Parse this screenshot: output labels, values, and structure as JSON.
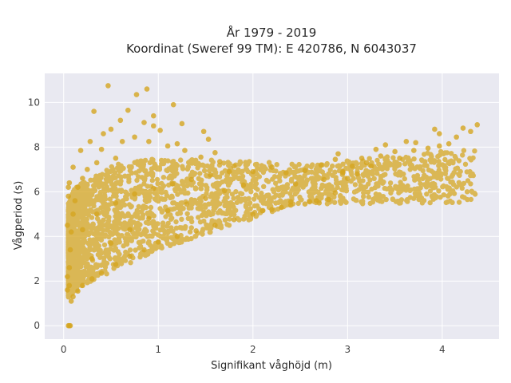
{
  "chart_data": {
    "type": "scatter",
    "title_lines": [
      "År 1979 - 2019",
      "Koordinat (Sweref 99 TM): E 420786, N 6043037"
    ],
    "xlabel": "Signifikant våghöjd (m)",
    "ylabel": "Vågperiod (s)",
    "xlim": [
      -0.2,
      4.6
    ],
    "ylim": [
      -0.6,
      11.3
    ],
    "xticks": [
      0,
      1,
      2,
      3,
      4
    ],
    "yticks": [
      0,
      2,
      4,
      6,
      8,
      10
    ],
    "grid": true,
    "marker_color": "#D4A520",
    "plot_background": "#E9E9F1",
    "points": [
      [
        0.05,
        0.0
      ],
      [
        0.07,
        0.0
      ],
      [
        0.06,
        0.0
      ],
      [
        0.47,
        10.75
      ],
      [
        0.77,
        10.35
      ],
      [
        0.88,
        10.6
      ],
      [
        1.16,
        9.9
      ],
      [
        0.32,
        9.6
      ],
      [
        0.68,
        9.65
      ],
      [
        0.6,
        9.2
      ],
      [
        0.95,
        9.4
      ],
      [
        0.85,
        9.1
      ],
      [
        0.42,
        8.6
      ],
      [
        0.5,
        8.8
      ],
      [
        0.95,
        8.95
      ],
      [
        1.25,
        9.05
      ],
      [
        1.02,
        8.75
      ],
      [
        1.48,
        8.7
      ],
      [
        1.53,
        8.35
      ],
      [
        1.2,
        8.15
      ],
      [
        1.6,
        7.75
      ],
      [
        0.28,
        8.25
      ],
      [
        0.18,
        7.85
      ],
      [
        0.1,
        7.1
      ],
      [
        0.05,
        6.2
      ],
      [
        0.08,
        1.1
      ],
      [
        0.1,
        1.3
      ],
      [
        0.15,
        1.55
      ],
      [
        0.2,
        1.8
      ],
      [
        0.3,
        2.1
      ],
      [
        0.4,
        2.35
      ],
      [
        0.55,
        2.75
      ],
      [
        0.7,
        3.1
      ],
      [
        0.85,
        3.4
      ],
      [
        1.0,
        3.75
      ],
      [
        1.2,
        4.0
      ],
      [
        1.4,
        4.25
      ],
      [
        1.6,
        4.5
      ],
      [
        1.8,
        4.75
      ],
      [
        2.0,
        5.0
      ],
      [
        2.2,
        5.2
      ],
      [
        2.4,
        5.4
      ],
      [
        2.6,
        5.55
      ],
      [
        2.87,
        5.95
      ],
      [
        2.67,
        5.6
      ],
      [
        2.95,
        6.9
      ],
      [
        3.05,
        7.15
      ],
      [
        3.2,
        7.3
      ],
      [
        3.35,
        7.6
      ],
      [
        3.5,
        7.8
      ],
      [
        3.7,
        7.85
      ],
      [
        3.85,
        7.95
      ],
      [
        3.97,
        8.05
      ],
      [
        4.07,
        8.15
      ],
      [
        4.15,
        8.45
      ],
      [
        4.3,
        8.7
      ],
      [
        4.37,
        9.0
      ],
      [
        4.22,
        8.85
      ],
      [
        3.97,
        8.6
      ],
      [
        3.92,
        8.8
      ],
      [
        3.72,
        8.2
      ],
      [
        3.62,
        8.25
      ],
      [
        3.4,
        8.1
      ],
      [
        3.3,
        7.9
      ],
      [
        3.15,
        7.5
      ],
      [
        2.87,
        7.45
      ],
      [
        2.72,
        7.2
      ],
      [
        2.9,
        7.7
      ],
      [
        2.55,
        6.95
      ],
      [
        2.35,
        6.85
      ],
      [
        2.2,
        7.1
      ],
      [
        2.0,
        6.9
      ],
      [
        1.8,
        7.15
      ],
      [
        1.65,
        7.35
      ],
      [
        1.45,
        7.55
      ],
      [
        1.28,
        7.85
      ],
      [
        1.1,
        8.05
      ],
      [
        0.9,
        8.25
      ],
      [
        0.75,
        8.45
      ],
      [
        0.62,
        8.25
      ],
      [
        0.4,
        7.9
      ],
      [
        0.55,
        7.5
      ],
      [
        0.35,
        7.3
      ],
      [
        0.25,
        7.0
      ],
      [
        0.2,
        6.6
      ],
      [
        0.15,
        6.2
      ],
      [
        0.12,
        5.6
      ],
      [
        0.1,
        5.0
      ],
      [
        0.08,
        4.2
      ],
      [
        0.07,
        3.4
      ],
      [
        0.06,
        2.6
      ],
      [
        0.06,
        1.8
      ],
      [
        0.04,
        1.6
      ],
      [
        0.04,
        2.2
      ],
      [
        0.04,
        4.5
      ],
      [
        0.05,
        5.8
      ],
      [
        0.06,
        6.4
      ],
      [
        2.4,
        5.55
      ],
      [
        2.55,
        5.45
      ],
      [
        2.7,
        5.5
      ],
      [
        2.8,
        5.65
      ],
      [
        2.3,
        5.3
      ],
      [
        2.1,
        5.15
      ],
      [
        3.0,
        6.6
      ],
      [
        3.1,
        6.8
      ],
      [
        2.75,
        6.55
      ],
      [
        2.45,
        6.35
      ],
      [
        1.9,
        6.3
      ],
      [
        1.7,
        6.05
      ],
      [
        1.5,
        5.7
      ],
      [
        1.3,
        5.45
      ],
      [
        1.1,
        5.15
      ],
      [
        0.9,
        4.8
      ],
      [
        0.7,
        4.3
      ],
      [
        0.5,
        3.7
      ],
      [
        0.3,
        3.0
      ],
      [
        1.75,
        6.9
      ],
      [
        1.55,
        6.75
      ],
      [
        1.35,
        6.55
      ],
      [
        1.15,
        6.35
      ],
      [
        0.95,
        6.15
      ],
      [
        0.75,
        5.9
      ],
      [
        0.55,
        5.5
      ],
      [
        0.35,
        5.0
      ],
      [
        0.2,
        4.3
      ],
      [
        3.55,
        7.5
      ],
      [
        3.25,
        7.15
      ],
      [
        2.95,
        6.85
      ]
    ]
  }
}
